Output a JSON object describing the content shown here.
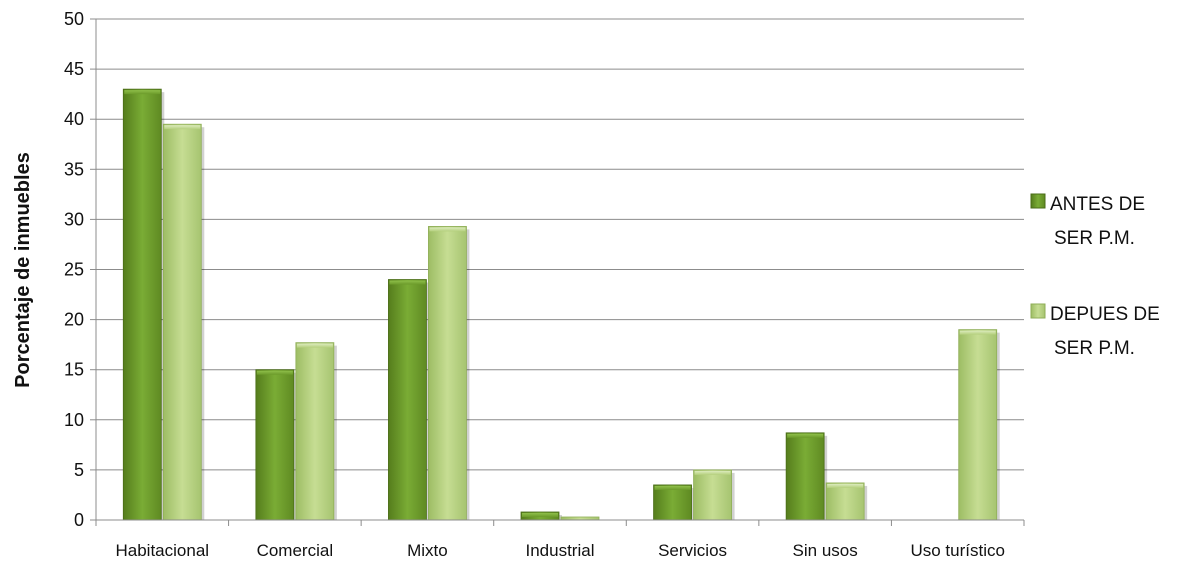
{
  "chart_data": {
    "type": "bar",
    "ylabel": "Porcentaje de inmuebles",
    "xlabel": "",
    "title": "",
    "ylim": [
      0,
      50
    ],
    "yticks": [
      0,
      5,
      10,
      15,
      20,
      25,
      30,
      35,
      40,
      45,
      50
    ],
    "grid": true,
    "legend_position": "right",
    "categories": [
      "Habitacional",
      "Comercial",
      "Mixto",
      "Industrial",
      "Servicios",
      "Sin usos",
      "Uso turístico"
    ],
    "series": [
      {
        "name_lines": [
          "ANTES DE",
          "SER P.M."
        ],
        "color": "#6b9a2a",
        "values": [
          43,
          15,
          24,
          0.8,
          3.5,
          8.7,
          0
        ]
      },
      {
        "name_lines": [
          "DEPUES DE",
          "SER P.M."
        ],
        "color": "#b4cf7c",
        "values": [
          39.5,
          17.7,
          29.3,
          0.3,
          5,
          3.7,
          19
        ]
      }
    ]
  }
}
